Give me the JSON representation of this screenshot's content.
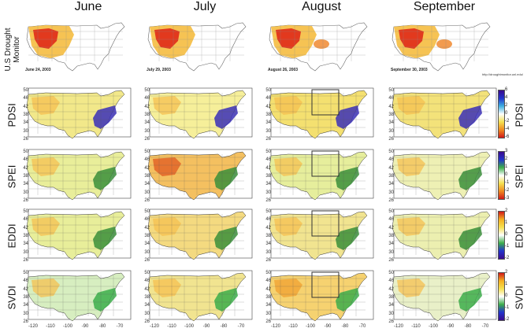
{
  "months": [
    "June",
    "July",
    "August",
    "September"
  ],
  "udm": {
    "label_line1": "U.S Drought",
    "label_line2": "Monitor",
    "dates": [
      "June 24, 2003",
      "July 29, 2003",
      "August 26, 2003",
      "September 30, 2003"
    ],
    "url": "http://droughtmonitor.unl.edu/"
  },
  "rows": [
    {
      "label": "PDSI",
      "colorbar": {
        "ticks": [
          "6",
          "4",
          "2",
          "0",
          "-2",
          "-4",
          "-6"
        ],
        "colors": [
          "#3a0a8c",
          "#2233cc",
          "#3fb0e0",
          "#ffffff",
          "#f5e050",
          "#f08a20",
          "#d01818"
        ]
      }
    },
    {
      "label": "SPEI",
      "colorbar": {
        "ticks": [
          "3",
          "2",
          "1",
          "0",
          "-1",
          "-2",
          "-3"
        ],
        "colors": [
          "#3a0a8c",
          "#2233cc",
          "#3cae4a",
          "#ffffff",
          "#f5e050",
          "#f08a20",
          "#d01818"
        ]
      }
    },
    {
      "label": "EDDI",
      "colorbar": {
        "ticks": [
          "2",
          "1",
          "0",
          "-1",
          "-2"
        ],
        "colors": [
          "#d01818",
          "#f5b020",
          "#f5e050",
          "#ffffff",
          "#3cae4a",
          "#2233cc",
          "#3a0a8c"
        ]
      }
    },
    {
      "label": "SVDI",
      "colorbar": {
        "ticks": [
          "2",
          "1",
          "0",
          "-1",
          "-2"
        ],
        "colors": [
          "#d01818",
          "#f5b020",
          "#f5e050",
          "#ffffff",
          "#3cae4a",
          "#2233cc",
          "#3a0a8c"
        ]
      }
    }
  ],
  "y_ticks": [
    "50",
    "46",
    "42",
    "38",
    "34",
    "30",
    "26"
  ],
  "x_ticks": [
    "-120",
    "-110",
    "-100",
    "-90",
    "-80",
    "-70"
  ]
}
